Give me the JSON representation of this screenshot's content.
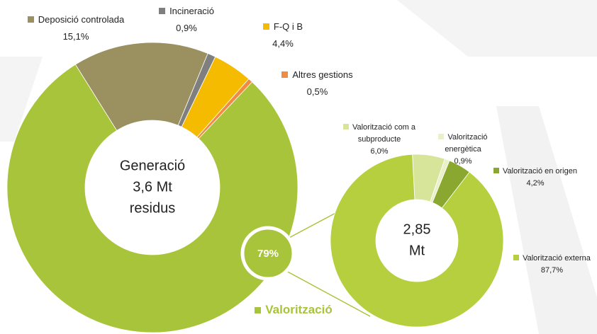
{
  "chart_data": [
    {
      "type": "pie",
      "center_lines": [
        "Generació",
        "3,6 Mt",
        "residus"
      ],
      "categories": [
        "Deposició controlada",
        "Incineració",
        "F-Q i B",
        "Altres gestions",
        "Valorització"
      ],
      "values": [
        15.1,
        0.9,
        4.4,
        0.5,
        79
      ],
      "value_labels": [
        "15,1%",
        "0,9%",
        "4,4%",
        "0,5%",
        "79%"
      ],
      "colors": [
        "#9b9160",
        "#7f7f7f",
        "#f5bb00",
        "#f08c40",
        "#a8c43a"
      ]
    },
    {
      "type": "pie",
      "center_lines": [
        "2,85",
        "Mt"
      ],
      "categories": [
        "Valorització com a subproducte",
        "Valorització energètica",
        "Valorització en origen",
        "Valorització externa"
      ],
      "values": [
        6.0,
        0.9,
        4.2,
        87.7
      ],
      "value_labels": [
        "6,0%",
        "0,9%",
        "4,2%",
        "87,7%"
      ],
      "colors": [
        "#d6e59a",
        "#eaf0c8",
        "#8aa830",
        "#b5cf3e"
      ]
    }
  ]
}
